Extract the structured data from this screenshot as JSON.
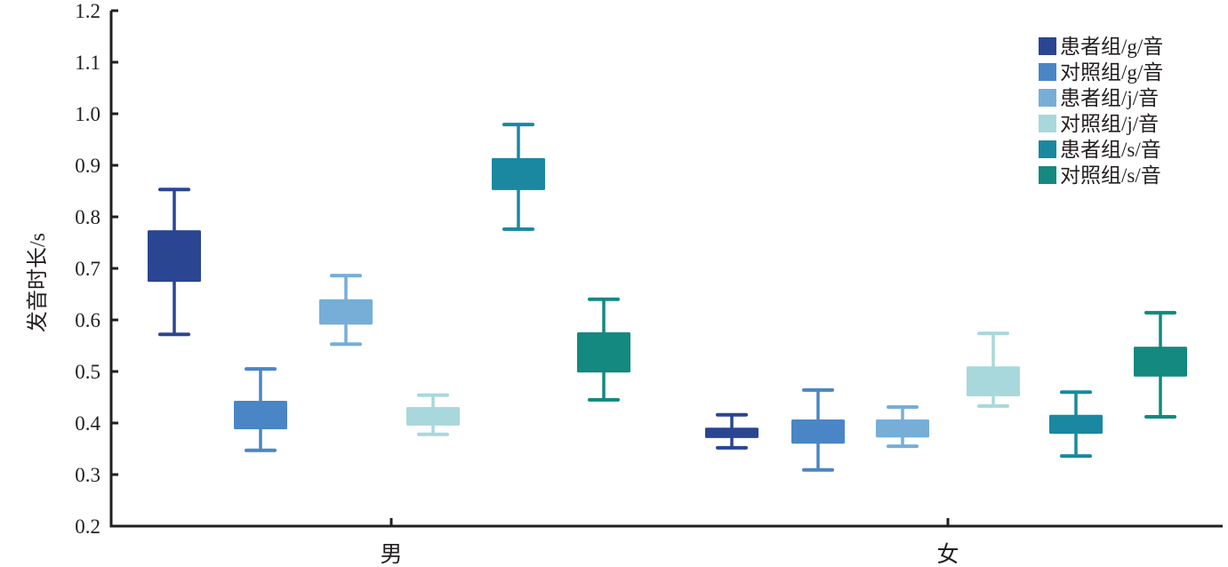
{
  "chart_data": {
    "type": "box",
    "title": "",
    "xlabel": "",
    "ylabel": "发音时长/s",
    "ylim": [
      0.2,
      1.2
    ],
    "yticks": [
      "0.2",
      "0.3",
      "0.4",
      "0.5",
      "0.6",
      "0.7",
      "0.8",
      "0.9",
      "1.0",
      "1.1",
      "1.2"
    ],
    "categories": [
      "男",
      "女"
    ],
    "legend_position": "top-right",
    "grid": false,
    "series": [
      {
        "name": "患者组/g/音",
        "color": "#2a4592",
        "values": [
          {
            "min": 0.572,
            "q1": 0.674,
            "q3": 0.774,
            "max": 0.853
          },
          {
            "min": 0.352,
            "q1": 0.371,
            "q3": 0.391,
            "max": 0.416
          }
        ]
      },
      {
        "name": "对照组/g/音",
        "color": "#4a86c5",
        "values": [
          {
            "min": 0.347,
            "q1": 0.388,
            "q3": 0.443,
            "max": 0.505
          },
          {
            "min": 0.309,
            "q1": 0.36,
            "q3": 0.407,
            "max": 0.464
          }
        ]
      },
      {
        "name": "患者组/j/音",
        "color": "#76aed8",
        "values": [
          {
            "min": 0.553,
            "q1": 0.591,
            "q3": 0.64,
            "max": 0.686
          },
          {
            "min": 0.355,
            "q1": 0.372,
            "q3": 0.407,
            "max": 0.431
          }
        ]
      },
      {
        "name": "对照组/j/音",
        "color": "#a8d8dc",
        "values": [
          {
            "min": 0.378,
            "q1": 0.395,
            "q3": 0.431,
            "max": 0.454
          },
          {
            "min": 0.433,
            "q1": 0.452,
            "q3": 0.51,
            "max": 0.574
          }
        ]
      },
      {
        "name": "患者组/s/音",
        "color": "#1a88a0",
        "values": [
          {
            "min": 0.776,
            "q1": 0.852,
            "q3": 0.914,
            "max": 0.979
          },
          {
            "min": 0.336,
            "q1": 0.379,
            "q3": 0.416,
            "max": 0.46
          }
        ]
      },
      {
        "name": "对照组/s/音",
        "color": "#13897f",
        "values": [
          {
            "min": 0.445,
            "q1": 0.498,
            "q3": 0.576,
            "max": 0.64
          },
          {
            "min": 0.412,
            "q1": 0.49,
            "q3": 0.548,
            "max": 0.614
          }
        ]
      }
    ]
  }
}
